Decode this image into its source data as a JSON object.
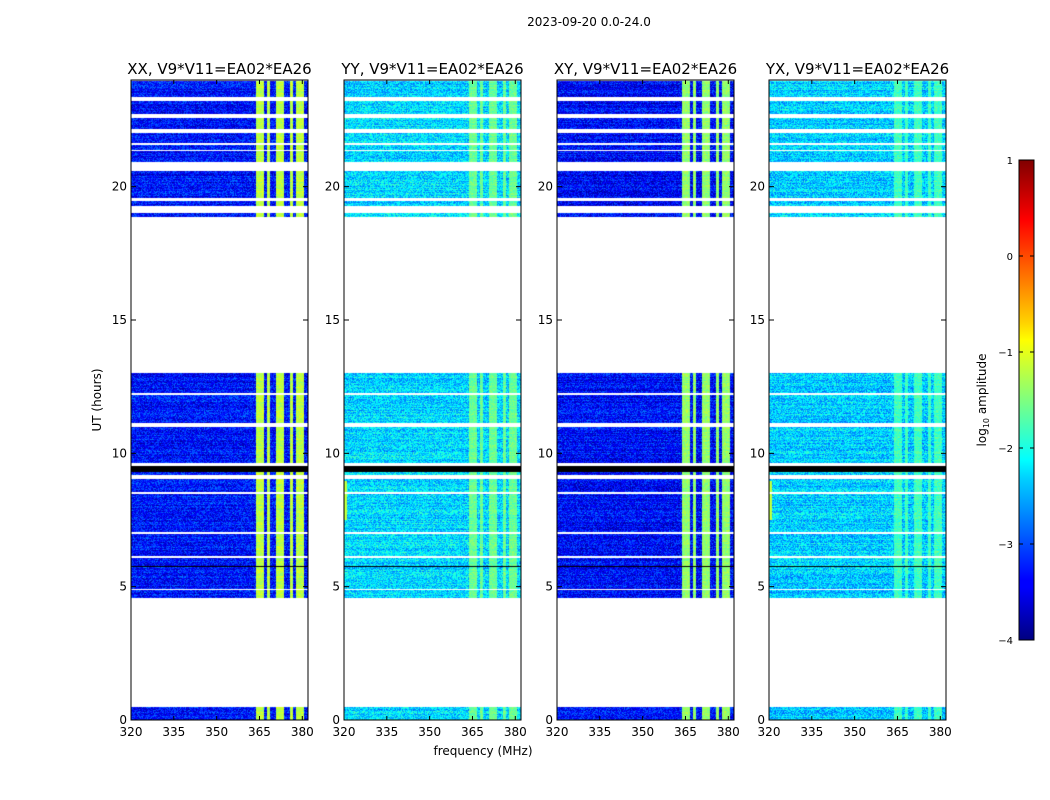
{
  "figure_title": "2023-09-20 0.0-24.0",
  "colors": {
    "white_gap": "#ffffff",
    "black_row": "#000000"
  },
  "chart_data": {
    "type": "heatmap",
    "suptitle": "2023-09-20 0.0-24.0",
    "xlabel": "frequency (MHz)",
    "ylabel": "UT (hours)",
    "xlim": [
      320,
      382
    ],
    "ylim": [
      0,
      24
    ],
    "xticks": [
      320,
      335,
      350,
      365,
      380
    ],
    "yticks": [
      0,
      5,
      10,
      15,
      20
    ],
    "colorbar": {
      "label": "log10 amplitude",
      "label_main": "log",
      "label_sub": "10",
      "label_rest": " amplitude",
      "range": [
        -4,
        1
      ],
      "ticks": [
        -4,
        -3,
        -2,
        -1,
        0,
        1
      ],
      "colormap": "jet"
    },
    "panels": [
      {
        "title": "XX, V9*V11=EA02*EA26",
        "base_log": -3.3,
        "rfi_log": -1.2
      },
      {
        "title": "YY, V9*V11=EA02*EA26",
        "base_log": -2.3,
        "rfi_log": -1.6
      },
      {
        "title": "XY, V9*V11=EA02*EA26",
        "base_log": -3.35,
        "rfi_log": -1.4
      },
      {
        "title": "YX, V9*V11=EA02*EA26",
        "base_log": -2.35,
        "rfi_log": -1.8
      }
    ],
    "data_segments_ut": [
      [
        0.0,
        0.5
      ],
      [
        4.6,
        13.05
      ],
      [
        18.9,
        19.05
      ],
      [
        19.3,
        20.6
      ],
      [
        20.95,
        24.0
      ]
    ],
    "black_rows_ut": [
      [
        9.3,
        9.55
      ],
      [
        5.75,
        5.8
      ]
    ],
    "white_rows_ut": [
      [
        11.0,
        11.15
      ],
      [
        9.55,
        9.65
      ],
      [
        9.05,
        9.2
      ],
      [
        8.5,
        8.55
      ],
      [
        23.25,
        23.4
      ],
      [
        22.6,
        22.75
      ],
      [
        22.05,
        22.2
      ],
      [
        21.6,
        21.65
      ],
      [
        21.35,
        21.4
      ],
      [
        19.5,
        19.6
      ],
      [
        12.2,
        12.28
      ],
      [
        7.0,
        7.05
      ],
      [
        6.1,
        6.15
      ],
      [
        4.9,
        4.95
      ]
    ],
    "rfi_bands_mhz": [
      [
        363.5,
        366.5
      ],
      [
        367.5,
        368.5
      ],
      [
        370.5,
        373.5
      ],
      [
        375.5,
        376.5
      ],
      [
        377.5,
        380.5
      ]
    ]
  }
}
